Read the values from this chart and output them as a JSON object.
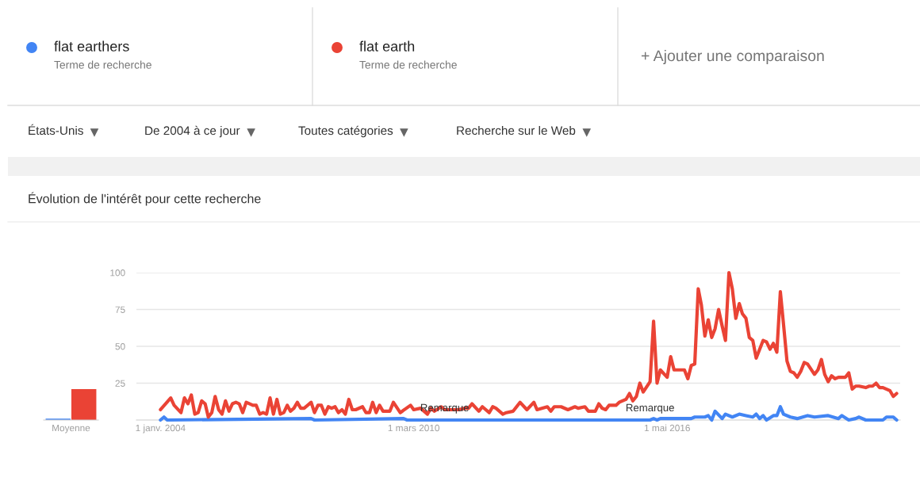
{
  "chart_data": [
    {
      "type": "bar",
      "categories": [
        "Moyenne"
      ],
      "ylim": [
        0,
        100
      ],
      "tick_labels": "x",
      "series": [
        {
          "color": "#4285f4",
          "values": [
            1
          ]
        },
        {
          "color": "#ea4335",
          "values": [
            21
          ]
        }
      ]
    },
    {
      "type": "line",
      "title": "Évolution de l'intérêt pour cette recherche",
      "legend": "top",
      "grid": "y",
      "tick_labels": "xy",
      "xlim": [
        "2003-06",
        "2022-01"
      ],
      "ylim": [
        0,
        100
      ],
      "yticks": [
        25,
        50,
        75,
        100
      ],
      "xticks": [
        {
          "value": "2004-01-01",
          "label": "1 janv. 2004"
        },
        {
          "value": "2010-03-01",
          "label": "1 mars 2010"
        },
        {
          "value": "2016-05-01",
          "label": "1 mai 2016"
        }
      ],
      "annotations": [
        "Terme de recherche",
        "Terme de recherche",
        "+ Ajouter une comparaison",
        "États-Unis",
        "De 2004 à ce jour",
        "Toutes catégories",
        "Recherche sur le Web",
        {
          "text": "Remarque",
          "x": "2010-12",
          "y": 0
        },
        {
          "text": "Remarque",
          "x": "2015-12",
          "y": 0
        }
      ],
      "series": [
        {
          "name": "flat earthers",
          "color": "#4285f4",
          "x": [
            "2004-01",
            "2004-02",
            "2004-03",
            "2007-09",
            "2007-10",
            "2009-12",
            "2010-01",
            "2015-12",
            "2016-01",
            "2016-02",
            "2016-03",
            "2016-08",
            "2016-12",
            "2017-01",
            "2017-04",
            "2017-05",
            "2017-06",
            "2017-07",
            "2017-09",
            "2017-10",
            "2017-12",
            "2018-02",
            "2018-04",
            "2018-06",
            "2018-07",
            "2018-08",
            "2018-09",
            "2018-10",
            "2018-12",
            "2019-01",
            "2019-02",
            "2019-03",
            "2019-05",
            "2019-07",
            "2019-10",
            "2019-12",
            "2020-04",
            "2020-07",
            "2020-08",
            "2020-10",
            "2020-12",
            "2021-01",
            "2021-03",
            "2021-08",
            "2021-09",
            "2021-11",
            "2021-12"
          ],
          "values": [
            0,
            2,
            0,
            1,
            0,
            1,
            0,
            0,
            1,
            0,
            1,
            1,
            1,
            2,
            2,
            3,
            0,
            6,
            1,
            4,
            2,
            4,
            3,
            2,
            4,
            1,
            3,
            0,
            3,
            3,
            9,
            4,
            2,
            1,
            3,
            2,
            3,
            1,
            3,
            0,
            1,
            2,
            0,
            0,
            2,
            2,
            0
          ]
        },
        {
          "name": "flat earth",
          "color": "#ea4335",
          "x": [
            "2004-01",
            "2004-04",
            "2004-05",
            "2004-07",
            "2004-08",
            "2004-09",
            "2004-10",
            "2004-11",
            "2004-12",
            "2005-01",
            "2005-02",
            "2005-03",
            "2005-04",
            "2005-05",
            "2005-06",
            "2005-07",
            "2005-08",
            "2005-09",
            "2005-10",
            "2005-11",
            "2005-12",
            "2006-01",
            "2006-02",
            "2006-04",
            "2006-05",
            "2006-06",
            "2006-07",
            "2006-08",
            "2006-09",
            "2006-10",
            "2006-11",
            "2006-12",
            "2007-01",
            "2007-02",
            "2007-03",
            "2007-04",
            "2007-05",
            "2007-06",
            "2007-07",
            "2007-09",
            "2007-10",
            "2007-11",
            "2007-12",
            "2008-01",
            "2008-02",
            "2008-03",
            "2008-04",
            "2008-05",
            "2008-06",
            "2008-07",
            "2008-08",
            "2008-09",
            "2008-10",
            "2008-12",
            "2009-01",
            "2009-02",
            "2009-03",
            "2009-04",
            "2009-05",
            "2009-06",
            "2009-07",
            "2009-08",
            "2009-09",
            "2009-11",
            "2010-02",
            "2010-03",
            "2010-05",
            "2010-07",
            "2010-08",
            "2010-09",
            "2010-11",
            "2010-12",
            "2011-02",
            "2011-04",
            "2011-06",
            "2011-07",
            "2011-08",
            "2011-10",
            "2011-11",
            "2012-01",
            "2012-02",
            "2012-03",
            "2012-05",
            "2012-06",
            "2012-08",
            "2012-10",
            "2012-12",
            "2013-02",
            "2013-03",
            "2013-06",
            "2013-07",
            "2013-08",
            "2013-10",
            "2013-12",
            "2014-02",
            "2014-03",
            "2014-05",
            "2014-06",
            "2014-08",
            "2014-09",
            "2014-10",
            "2014-11",
            "2014-12",
            "2015-02",
            "2015-03",
            "2015-05",
            "2015-06",
            "2015-07",
            "2015-08",
            "2015-09",
            "2015-10",
            "2015-12",
            "2016-01",
            "2016-02",
            "2016-03",
            "2016-05",
            "2016-06",
            "2016-07",
            "2016-10",
            "2016-11",
            "2016-12",
            "2017-01",
            "2017-02",
            "2017-03",
            "2017-04",
            "2017-05",
            "2017-06",
            "2017-07",
            "2017-08",
            "2017-09",
            "2017-10",
            "2017-11",
            "2017-12",
            "2018-01",
            "2018-02",
            "2018-03",
            "2018-04",
            "2018-05",
            "2018-06",
            "2018-07",
            "2018-08",
            "2018-09",
            "2018-10",
            "2018-11",
            "2018-12",
            "2019-01",
            "2019-02",
            "2019-03",
            "2019-04",
            "2019-05",
            "2019-06",
            "2019-07",
            "2019-08",
            "2019-09",
            "2019-10",
            "2019-12",
            "2020-01",
            "2020-02",
            "2020-03",
            "2020-04",
            "2020-05",
            "2020-06",
            "2020-07",
            "2020-09",
            "2020-10",
            "2020-11",
            "2020-12",
            "2021-01",
            "2021-03",
            "2021-04",
            "2021-05",
            "2021-06",
            "2021-07",
            "2021-08",
            "2021-10",
            "2021-11",
            "2021-12"
          ],
          "values": [
            7,
            15,
            10,
            5,
            15,
            11,
            17,
            4,
            5,
            13,
            11,
            2,
            5,
            16,
            7,
            4,
            13,
            6,
            11,
            12,
            11,
            5,
            12,
            10,
            10,
            4,
            5,
            4,
            15,
            4,
            14,
            4,
            5,
            10,
            6,
            8,
            12,
            8,
            8,
            12,
            5,
            10,
            10,
            4,
            9,
            8,
            9,
            5,
            7,
            4,
            14,
            7,
            7,
            9,
            5,
            5,
            12,
            5,
            10,
            6,
            6,
            6,
            12,
            5,
            10,
            7,
            8,
            4,
            8,
            6,
            9,
            7,
            7,
            7,
            8,
            8,
            11,
            6,
            9,
            5,
            9,
            8,
            4,
            5,
            6,
            12,
            7,
            12,
            7,
            9,
            6,
            9,
            9,
            7,
            9,
            8,
            9,
            6,
            6,
            11,
            8,
            7,
            10,
            10,
            12,
            14,
            18,
            13,
            16,
            25,
            19,
            26,
            67,
            25,
            34,
            29,
            43,
            34,
            34,
            28,
            37,
            38,
            89,
            78,
            57,
            68,
            56,
            62,
            75,
            64,
            54,
            100,
            89,
            69,
            79,
            72,
            69,
            56,
            54,
            42,
            48,
            54,
            53,
            48,
            52,
            46,
            87,
            65,
            40,
            33,
            32,
            29,
            33,
            39,
            38,
            31,
            34,
            41,
            31,
            26,
            30,
            28,
            29,
            29,
            32,
            21,
            23,
            23,
            22,
            23,
            23,
            25,
            22,
            22,
            20,
            16,
            18
          ]
        }
      ]
    }
  ]
}
